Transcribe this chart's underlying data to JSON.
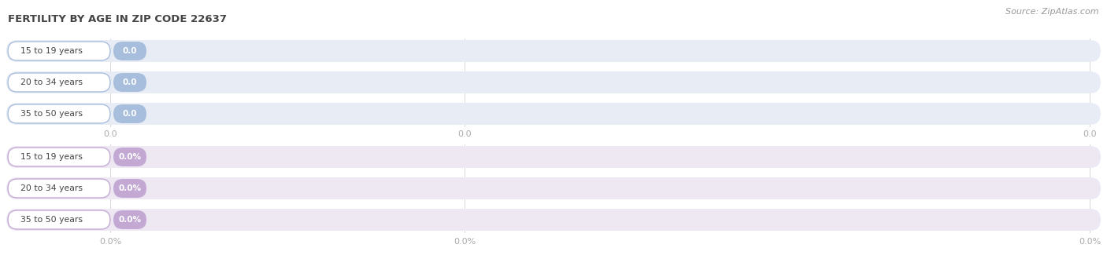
{
  "title": "FERTILITY BY AGE IN ZIP CODE 22637",
  "source": "Source: ZipAtlas.com",
  "top_section": {
    "categories": [
      "15 to 19 years",
      "20 to 34 years",
      "35 to 50 years"
    ],
    "values": [
      0.0,
      0.0,
      0.0
    ],
    "bar_color": "#a8bedd",
    "track_color": "#e8edf5",
    "label_text_color": "#444444",
    "value_text_color": "#ffffff",
    "x_tick_labels": [
      "0.0",
      "0.0",
      "0.0"
    ]
  },
  "bottom_section": {
    "categories": [
      "15 to 19 years",
      "20 to 34 years",
      "35 to 50 years"
    ],
    "values": [
      0.0,
      0.0,
      0.0
    ],
    "bar_color": "#c4a8d4",
    "track_color": "#ede8f2",
    "label_text_color": "#444444",
    "value_text_color": "#f0e0f0",
    "x_tick_labels": [
      "0.0%",
      "0.0%",
      "0.0%"
    ]
  },
  "bg_color": "#ffffff",
  "title_color": "#444444",
  "title_fontsize": 9.5,
  "source_fontsize": 8.0,
  "source_color": "#999999",
  "tick_color": "#aaaaaa",
  "grid_color": "#d8d8d8"
}
